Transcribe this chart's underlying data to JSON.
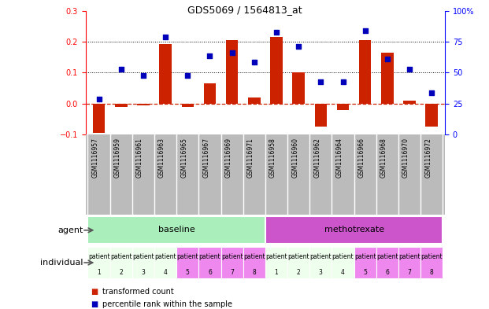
{
  "title": "GDS5069 / 1564813_at",
  "samples": [
    "GSM1116957",
    "GSM1116959",
    "GSM1116961",
    "GSM1116963",
    "GSM1116965",
    "GSM1116967",
    "GSM1116969",
    "GSM1116971",
    "GSM1116958",
    "GSM1116960",
    "GSM1116962",
    "GSM1116964",
    "GSM1116966",
    "GSM1116968",
    "GSM1116970",
    "GSM1116972"
  ],
  "bar_values": [
    -0.095,
    -0.01,
    -0.005,
    0.193,
    -0.01,
    0.065,
    0.205,
    0.02,
    0.215,
    0.1,
    -0.075,
    -0.02,
    0.205,
    0.165,
    0.01,
    -0.075
  ],
  "dot_values": [
    0.015,
    0.11,
    0.09,
    0.215,
    0.09,
    0.155,
    0.165,
    0.135,
    0.23,
    0.185,
    0.07,
    0.07,
    0.235,
    0.145,
    0.11,
    0.035
  ],
  "ylim_left": [
    -0.1,
    0.3
  ],
  "ylim_right": [
    0,
    100
  ],
  "bar_color": "#cc2200",
  "dot_color": "#0000bb",
  "dotted_lines": [
    0.1,
    0.2
  ],
  "agent_groups": [
    {
      "label": "baseline",
      "start": 0,
      "end": 8,
      "color": "#aaeebb"
    },
    {
      "label": "methotrexate",
      "start": 8,
      "end": 16,
      "color": "#cc55cc"
    }
  ],
  "individual_labels": [
    "patient\n1",
    "patient\n2",
    "patient\n3",
    "patient\n4",
    "patient\n5",
    "patient\n6",
    "patient\n7",
    "patient\n8",
    "patient\n1",
    "patient\n2",
    "patient\n3",
    "patient\n4",
    "patient\n5",
    "patient\n6",
    "patient\n7",
    "patient\n8"
  ],
  "individual_colors": [
    "#eeffee",
    "#eeffee",
    "#eeffee",
    "#eeffee",
    "#ee88ee",
    "#ee88ee",
    "#ee88ee",
    "#ee88ee",
    "#eeffee",
    "#eeffee",
    "#eeffee",
    "#eeffee",
    "#ee88ee",
    "#ee88ee",
    "#ee88ee",
    "#ee88ee"
  ],
  "legend1_color": "#cc2200",
  "legend1_label": "transformed count",
  "legend2_color": "#0000bb",
  "legend2_label": "percentile rank within the sample",
  "agent_label": "agent",
  "individual_label": "individual",
  "sample_bg": "#bbbbbb",
  "bg_color": "#ffffff"
}
